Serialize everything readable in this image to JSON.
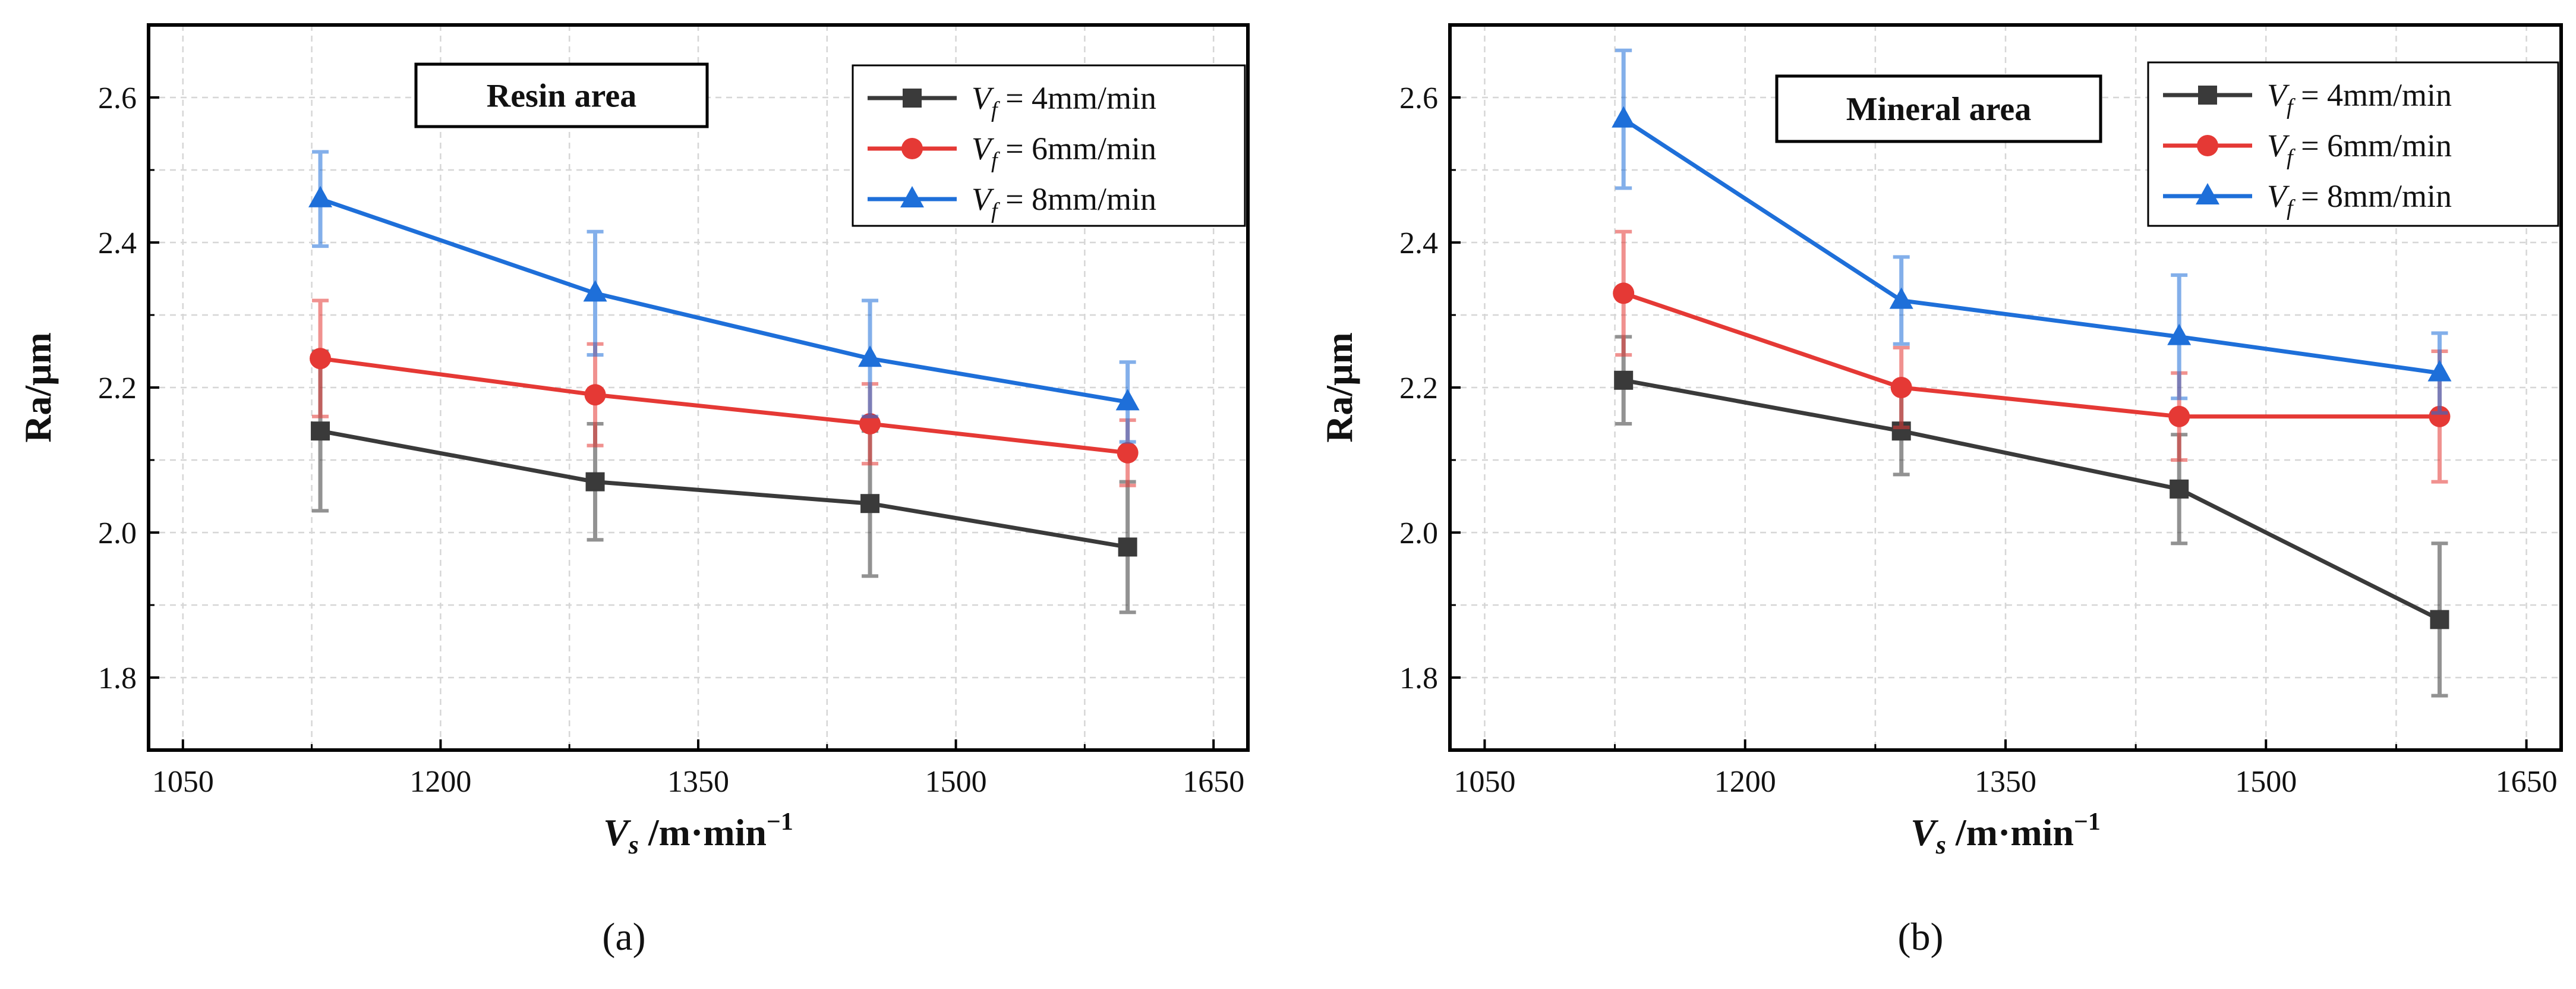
{
  "chart_data": [
    {
      "type": "line",
      "panel_label": "(a)",
      "panel_letter": "a",
      "annotation": "Resin area",
      "xlabel": "V_s /m·min⁻¹",
      "xlabel_parts": {
        "symbol": "V",
        "subscript": "s",
        "unit": " /m·min",
        "superscript": "−1"
      },
      "ylabel": "Ra/μm",
      "xlim": [
        1030,
        1670
      ],
      "ylim": [
        1.7,
        2.7
      ],
      "xticks": [
        1050,
        1200,
        1350,
        1500,
        1650
      ],
      "yticks": [
        1.8,
        2.0,
        2.2,
        2.4,
        2.6
      ],
      "ytick_labels": [
        "1.8",
        "2.0",
        "2.2",
        "2.4",
        "2.6"
      ],
      "x": [
        1130,
        1290,
        1450,
        1600
      ],
      "grid": true,
      "legend_position": "top-right",
      "series": [
        {
          "name": "Vf = 4mm/min",
          "legend_prefix": "V",
          "legend_sub": "f",
          "legend_value": " = 4mm/min",
          "color": "#3a3a3a",
          "marker": "square",
          "values": [
            2.14,
            2.07,
            2.04,
            1.98
          ],
          "errors": [
            0.11,
            0.08,
            0.1,
            0.09
          ]
        },
        {
          "name": "Vf = 6mm/min",
          "legend_prefix": "V",
          "legend_sub": "f",
          "legend_value": " = 6mm/min",
          "color": "#e53935",
          "marker": "circle",
          "values": [
            2.24,
            2.19,
            2.15,
            2.11
          ],
          "errors": [
            0.08,
            0.07,
            0.055,
            0.045
          ]
        },
        {
          "name": "Vf = 8mm/min",
          "legend_prefix": "V",
          "legend_sub": "f",
          "legend_value": " = 8mm/min",
          "color": "#1e6fd9",
          "marker": "triangle",
          "values": [
            2.46,
            2.33,
            2.24,
            2.18
          ],
          "errors": [
            0.065,
            0.085,
            0.08,
            0.055
          ]
        }
      ]
    },
    {
      "type": "line",
      "panel_label": "(b)",
      "panel_letter": "b",
      "annotation": "Mineral area",
      "xlabel": "V_s /m·min⁻¹",
      "xlabel_parts": {
        "symbol": "V",
        "subscript": "s",
        "unit": " /m·min",
        "superscript": "−1"
      },
      "ylabel": "Ra/μm",
      "xlim": [
        1030,
        1670
      ],
      "ylim": [
        1.7,
        2.7
      ],
      "xticks": [
        1050,
        1200,
        1350,
        1500,
        1650
      ],
      "yticks": [
        1.8,
        2.0,
        2.2,
        2.4,
        2.6
      ],
      "ytick_labels": [
        "1.8",
        "2.0",
        "2.2",
        "2.4",
        "2.6"
      ],
      "x": [
        1130,
        1290,
        1450,
        1600
      ],
      "grid": true,
      "legend_position": "top-right",
      "series": [
        {
          "name": "Vf = 4mm/min",
          "legend_prefix": "V",
          "legend_sub": "f",
          "legend_value": " = 4mm/min",
          "color": "#3a3a3a",
          "marker": "square",
          "values": [
            2.21,
            2.14,
            2.06,
            1.88
          ],
          "errors": [
            0.06,
            0.06,
            0.075,
            0.105
          ]
        },
        {
          "name": "Vf = 6mm/min",
          "legend_prefix": "V",
          "legend_sub": "f",
          "legend_value": " = 6mm/min",
          "color": "#e53935",
          "marker": "circle",
          "values": [
            2.33,
            2.2,
            2.16,
            2.16
          ],
          "errors": [
            0.085,
            0.055,
            0.06,
            0.09
          ]
        },
        {
          "name": "Vf = 8mm/min",
          "legend_prefix": "V",
          "legend_sub": "f",
          "legend_value": " = 8mm/min",
          "color": "#1e6fd9",
          "marker": "triangle",
          "values": [
            2.57,
            2.32,
            2.27,
            2.22
          ],
          "errors": [
            0.095,
            0.06,
            0.085,
            0.055
          ]
        }
      ]
    }
  ]
}
